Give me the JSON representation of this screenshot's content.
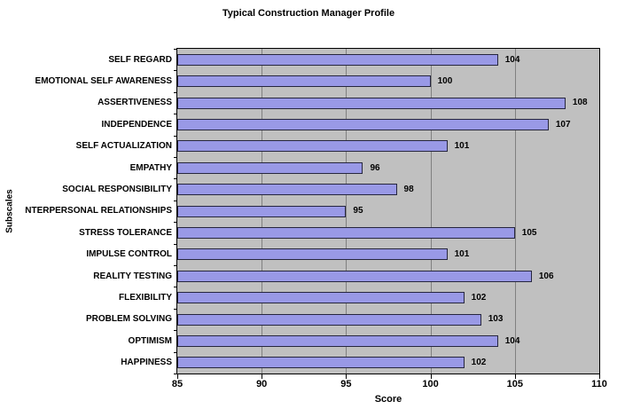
{
  "chart_data": {
    "type": "bar",
    "orientation": "horizontal",
    "title": "Typical Construction Manager Profile",
    "xlabel": "Score",
    "ylabel": "Subscales",
    "xlim": [
      85,
      110
    ],
    "xticks": [
      85,
      90,
      95,
      100,
      105,
      110
    ],
    "grid": true,
    "legend": false,
    "value_labels_shown": true,
    "categories": [
      "SELF REGARD",
      "EMOTIONAL SELF AWARENESS",
      "ASSERTIVENESS",
      "INDEPENDENCE",
      "SELF ACTUALIZATION",
      "EMPATHY",
      "SOCIAL RESPONSIBILITY",
      "NTERPERSONAL RELATIONSHIPS",
      "STRESS TOLERANCE",
      "IMPULSE CONTROL",
      "REALITY TESTING",
      "FLEXIBILITY",
      "PROBLEM SOLVING",
      "OPTIMISM",
      "HAPPINESS"
    ],
    "values": [
      104,
      100,
      108,
      107,
      101,
      96,
      98,
      95,
      105,
      101,
      106,
      102,
      103,
      104,
      102
    ],
    "colors": {
      "bar_fill": "#9999e6",
      "bar_border": "#26263e",
      "plot_bg": "#c0c0c0",
      "gridline": "#808080",
      "axis": "#000000",
      "page_bg": "#ffffff",
      "text": "#000000"
    }
  }
}
